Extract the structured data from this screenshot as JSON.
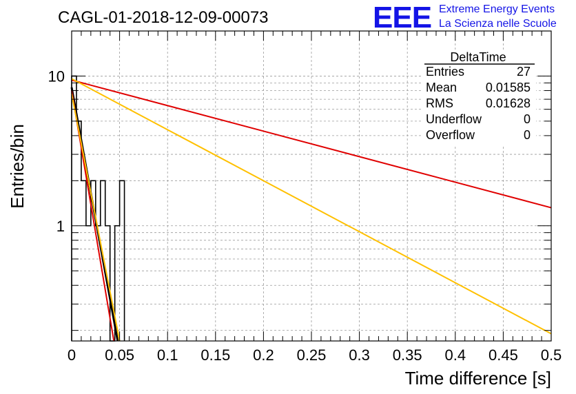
{
  "chart_data": {
    "type": "histogram",
    "title": "CAGL-01-2018-12-09-00073",
    "xlabel": "Time difference [s]",
    "ylabel": "Entries/bin",
    "xlim": [
      0,
      0.5
    ],
    "ylim": [
      0.17,
      20
    ],
    "yscale": "log",
    "grid": true,
    "x_ticks": [
      "0",
      "0.05",
      "0.1",
      "0.15",
      "0.2",
      "0.25",
      "0.3",
      "0.35",
      "0.4",
      "0.45",
      "0.5"
    ],
    "y_ticks": [
      {
        "value": 1,
        "label": "1"
      },
      {
        "value": 10,
        "label": "10"
      }
    ],
    "histogram": {
      "bin_width": 0.005,
      "values": [
        10,
        5,
        2,
        1,
        2,
        1,
        2,
        1,
        0,
        1,
        2
      ]
    },
    "fit_curves": [
      {
        "color": "#000000",
        "points": [
          [
            0.0,
            8.4
          ],
          [
            0.048,
            0.17
          ]
        ]
      },
      {
        "color": "#e00000",
        "points": [
          [
            0.0,
            8.0
          ],
          [
            0.044,
            0.17
          ]
        ]
      },
      {
        "color": "#ffc000",
        "points": [
          [
            0.0,
            7.6
          ],
          [
            0.05,
            0.17
          ]
        ]
      },
      {
        "color": "#e00000",
        "points": [
          [
            0.0,
            9.4
          ],
          [
            0.5,
            1.32
          ]
        ]
      },
      {
        "color": "#ffc000",
        "points": [
          [
            0.0,
            9.6
          ],
          [
            0.5,
            0.19
          ]
        ]
      }
    ],
    "stats_box": {
      "name": "DeltaTime",
      "rows": [
        {
          "label": "Entries",
          "value": "27"
        },
        {
          "label": "Mean",
          "value": "0.01585"
        },
        {
          "label": "RMS",
          "value": "0.01628"
        },
        {
          "label": "Underflow",
          "value": "0"
        },
        {
          "label": "Overflow",
          "value": "0"
        }
      ]
    }
  },
  "branding": {
    "logo": "EEE",
    "line1": "Extreme Energy Events",
    "line2": "La Scienza nelle Scuole"
  }
}
